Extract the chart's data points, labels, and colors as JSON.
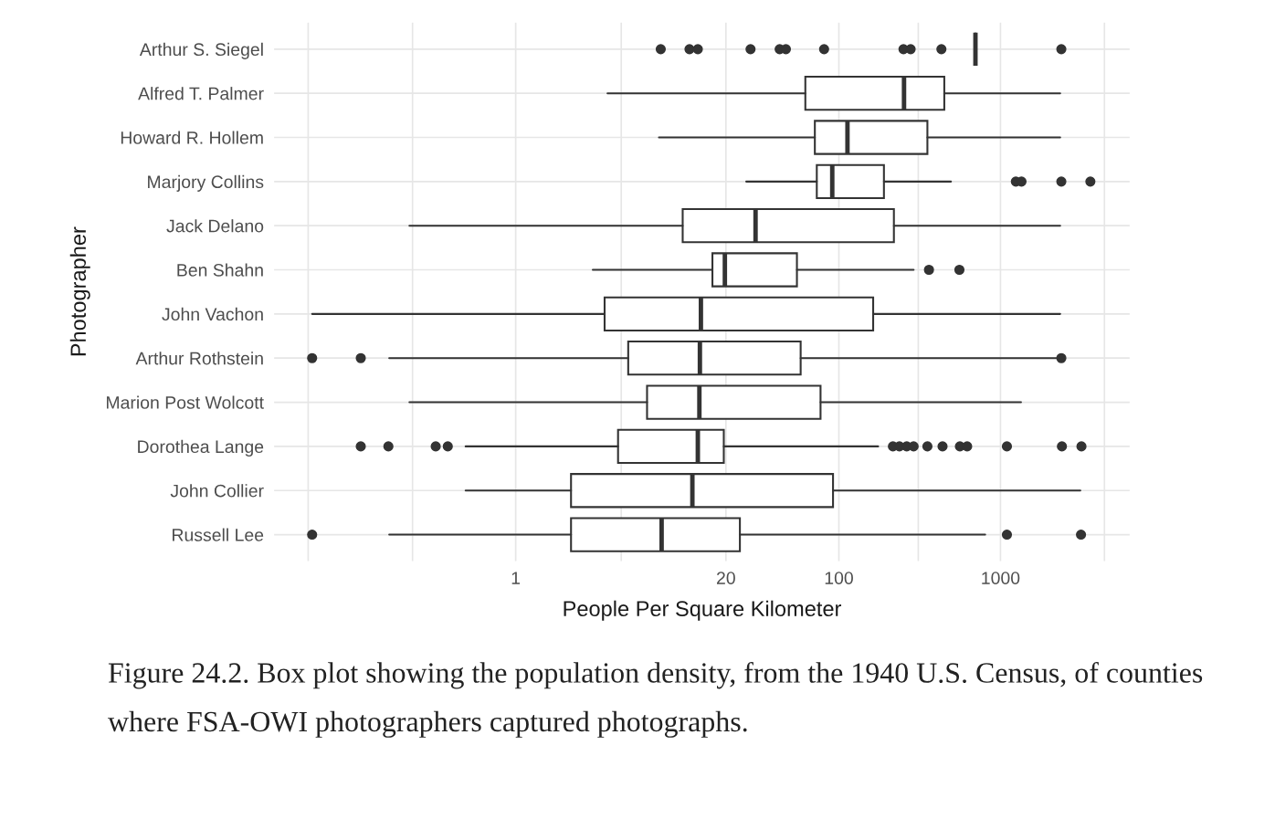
{
  "chart_data": {
    "type": "box",
    "orientation": "horizontal",
    "log": "x",
    "xlabel": "People Per Square Kilometer",
    "ylabel": "Photographer",
    "categories": [
      "Arthur S. Siegel",
      "Alfred T. Palmer",
      "Howard R. Hollem",
      "Marjory Collins",
      "Jack Delano",
      "Ben Shahn",
      "John Vachon",
      "Arthur Rothstein",
      "Marion Post Wolcott",
      "Dorothea Lange",
      "John Collier",
      "Russell Lee"
    ],
    "boxes": [
      {
        "low": 700,
        "q1": 700,
        "median": 700,
        "q3": 700,
        "high": 700,
        "outliers": [
          7.9,
          11.9,
          13.4,
          28.4,
          43,
          47,
          81,
          251,
          278,
          431,
          2380
        ]
      },
      {
        "low": 3.7,
        "q1": 62,
        "median": 253,
        "q3": 449,
        "high": 2340
      },
      {
        "low": 7.7,
        "q1": 71,
        "median": 113,
        "q3": 353,
        "high": 2340
      },
      {
        "low": 26.7,
        "q1": 73,
        "median": 91,
        "q3": 190,
        "high": 494,
        "outliers": [
          1245,
          1349,
          2380,
          3600
        ]
      },
      {
        "low": 0.22,
        "q1": 10.8,
        "median": 30.5,
        "q3": 219,
        "high": 2340
      },
      {
        "low": 3.0,
        "q1": 16.5,
        "median": 19.7,
        "q3": 55,
        "high": 290,
        "outliers": [
          361,
          557
        ]
      },
      {
        "low": 0.055,
        "q1": 3.55,
        "median": 14.0,
        "q3": 163,
        "high": 2340
      },
      {
        "low": 0.165,
        "q1": 4.97,
        "median": 13.8,
        "q3": 58,
        "high": 2300,
        "outliers": [
          0.055,
          0.11,
          2380
        ]
      },
      {
        "low": 0.22,
        "q1": 6.5,
        "median": 13.7,
        "q3": 77,
        "high": 1340
      },
      {
        "low": 0.49,
        "q1": 4.3,
        "median": 13.4,
        "q3": 19.4,
        "high": 175,
        "outliers": [
          0.11,
          0.163,
          0.32,
          0.38,
          216,
          237,
          263,
          290,
          353,
          438,
          561,
          622,
          1096,
          2400,
          3170
        ]
      },
      {
        "low": 0.49,
        "q1": 2.2,
        "median": 12.4,
        "q3": 92,
        "high": 3120
      },
      {
        "low": 0.165,
        "q1": 2.2,
        "median": 8.0,
        "q3": 24.4,
        "high": 804,
        "outliers": [
          0.055,
          1096,
          3150
        ]
      }
    ],
    "color": "#333333",
    "xlim": [
      0.032,
      6300
    ],
    "xticks": [
      {
        "value": 0.052,
        "label": null
      },
      {
        "value": 0.23,
        "label": null
      },
      1,
      {
        "value": 4.5,
        "label": null
      },
      20,
      100,
      {
        "value": 310,
        "label": null
      },
      1000,
      {
        "value": 4400,
        "label": null
      }
    ],
    "grid": true,
    "annotations": [
      "Figure 24.2. Box plot showing the population density, from the 1940 U.S. Census, of counties where FSA-OWI photographers captured photographs."
    ]
  }
}
